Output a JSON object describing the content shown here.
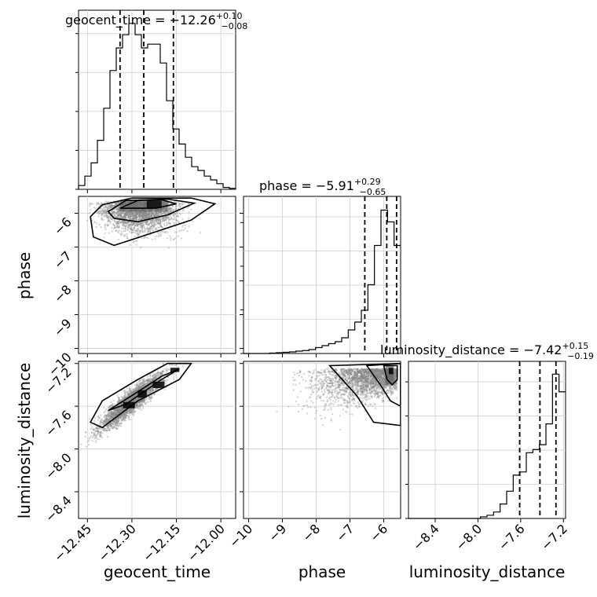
{
  "chart_data": {
    "type": "corner",
    "parameters": [
      "geocent_time",
      "phase",
      "luminosity_distance"
    ],
    "titles": [
      {
        "name": "geocent_time",
        "median": "−12.26",
        "plus": "+0.10",
        "minus": "−0.08"
      },
      {
        "name": "phase",
        "median": "−5.91",
        "plus": "+0.29",
        "minus": "−0.65"
      },
      {
        "name": "luminosity_distance",
        "median": "−7.42",
        "plus": "+0.15",
        "minus": "−0.19"
      }
    ],
    "axis_ranges": {
      "geocent_time": [
        -12.48,
        -11.95
      ],
      "phase": [
        -10.15,
        -5.5
      ],
      "luminosity_distance": [
        -8.65,
        -7.18
      ]
    },
    "ticks": {
      "geocent_time": [
        -12.45,
        -12.3,
        -12.15,
        -12.0
      ],
      "phase": [
        -10,
        -9,
        -8,
        -7,
        -6
      ],
      "luminosity_distance": [
        -8.4,
        -8.0,
        -7.6,
        -7.2
      ]
    },
    "tick_labels": {
      "geocent_time": [
        "−12.45",
        "−12.30",
        "−12.15",
        "−12.00"
      ],
      "phase": [
        "−10",
        "−9",
        "−8",
        "−7",
        "−6"
      ],
      "luminosity_distance": [
        "−8.4",
        "−8.0",
        "−7.6",
        "−7.2"
      ]
    },
    "quantiles": {
      "geocent_time": [
        -12.34,
        -12.26,
        -12.16
      ],
      "phase": [
        -6.56,
        -5.91,
        -5.62
      ],
      "luminosity_distance": [
        -7.61,
        -7.42,
        -7.27
      ]
    },
    "histograms": {
      "geocent_time": [
        0.02,
        0.07,
        0.14,
        0.26,
        0.43,
        0.63,
        0.75,
        0.82,
        0.88,
        0.82,
        0.75,
        0.77,
        0.77,
        0.67,
        0.47,
        0.32,
        0.24,
        0.17,
        0.12,
        0.1,
        0.07,
        0.05,
        0.03,
        0.01,
        0.005
      ],
      "phase": [
        0.0,
        0.0,
        0.0,
        0.0,
        0.002,
        0.004,
        0.006,
        0.008,
        0.012,
        0.015,
        0.02,
        0.03,
        0.04,
        0.05,
        0.06,
        0.08,
        0.12,
        0.16,
        0.22,
        0.35,
        0.55,
        0.73,
        0.67,
        0.55
      ],
      "luminosity_distance": [
        0.0,
        0.0,
        0.0,
        0.0,
        0.0,
        0.0,
        0.0,
        0.0,
        0.0,
        0.0,
        0.0,
        0.01,
        0.02,
        0.04,
        0.09,
        0.17,
        0.27,
        0.29,
        0.41,
        0.43,
        0.46,
        0.59,
        0.9,
        0.79
      ]
    },
    "hist_ylim": {
      "geocent_time": 0.95,
      "phase": 0.8,
      "luminosity_distance": 0.98
    },
    "xlabels": [
      "geocent_time",
      "phase",
      "luminosity_distance"
    ],
    "ylabels": [
      "phase",
      "luminosity_distance"
    ],
    "grid": true
  }
}
